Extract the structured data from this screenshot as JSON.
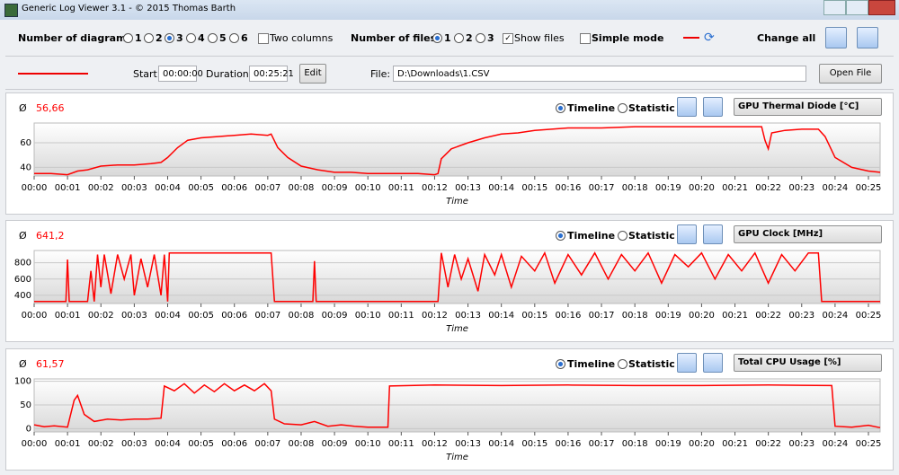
{
  "window_title": "Generic Log Viewer 3.1 - © 2015 Thomas Barth",
  "toolbar": {
    "diagrams_label": "Number of diagrams",
    "diagram_options": [
      "1",
      "2",
      "3",
      "4",
      "5",
      "6"
    ],
    "diagrams_selected": 3,
    "two_columns": "Two columns",
    "files_label": "Number of files",
    "file_options": [
      "1",
      "2",
      "3"
    ],
    "files_selected": 1,
    "show_files": "Show files",
    "simple_mode": "Simple mode",
    "change_all": "Change all"
  },
  "file_row": {
    "start_label": "Start:",
    "start": "00:00:00",
    "duration_label": "Duration:",
    "duration": "00:25:21",
    "edit": "Edit",
    "file_label": "File:",
    "file": "D:\\Downloads\\1.CSV",
    "open": "Open File"
  },
  "charts": [
    {
      "type": "line",
      "avg_symbol": "Ø",
      "average": "56,66",
      "timeline": "Timeline",
      "statistic": "Statistic",
      "sensor": "GPU Thermal Diode [°C]",
      "x_label": "Time",
      "color": "#ff0000",
      "x": [
        0,
        0.5,
        1,
        1.3,
        1.6,
        2,
        2.5,
        3,
        3.5,
        3.8,
        4,
        4.3,
        4.6,
        5,
        5.5,
        6,
        6.5,
        7,
        7.1,
        7.3,
        7.6,
        8,
        8.5,
        9,
        9.5,
        10,
        10.5,
        11,
        11.5,
        12,
        12.1,
        12.2,
        12.5,
        13,
        13.5,
        14,
        14.5,
        15,
        15.5,
        16,
        17,
        18,
        19,
        20,
        21,
        21.8,
        21.9,
        22,
        22.1,
        22.5,
        23,
        23.5,
        23.7,
        24,
        24.5,
        25,
        25.35
      ],
      "values": [
        35,
        35,
        34,
        37,
        38,
        41,
        42,
        42,
        43,
        44,
        48,
        56,
        62,
        64,
        65,
        66,
        67,
        66,
        67,
        56,
        48,
        41,
        38,
        36,
        36,
        35,
        35,
        35,
        35,
        34,
        35,
        47,
        55,
        60,
        64,
        67,
        68,
        70,
        71,
        72,
        72,
        73,
        73,
        73,
        73,
        73,
        62,
        55,
        68,
        70,
        71,
        71,
        65,
        48,
        40,
        37,
        36
      ],
      "xlim": [
        0,
        25.35
      ],
      "ylim": [
        33,
        76
      ],
      "yticks": [
        40,
        60
      ],
      "xticks": [
        {
          "value": 0,
          "label": "00:00"
        },
        {
          "value": 1,
          "label": "00:01"
        },
        {
          "value": 2,
          "label": "00:02"
        },
        {
          "value": 3,
          "label": "00:03"
        },
        {
          "value": 4,
          "label": "00:04"
        },
        {
          "value": 5,
          "label": "00:05"
        },
        {
          "value": 6,
          "label": "00:06"
        },
        {
          "value": 7,
          "label": "00:07"
        },
        {
          "value": 8,
          "label": "00:08"
        },
        {
          "value": 9,
          "label": "00:09"
        },
        {
          "value": 10,
          "label": "00:10"
        },
        {
          "value": 11,
          "label": "00:11"
        },
        {
          "value": 12,
          "label": "00:12"
        },
        {
          "value": 13,
          "label": "00:13"
        },
        {
          "value": 14,
          "label": "00:14"
        },
        {
          "value": 15,
          "label": "00:15"
        },
        {
          "value": 16,
          "label": "00:16"
        },
        {
          "value": 17,
          "label": "00:17"
        },
        {
          "value": 18,
          "label": "00:18"
        },
        {
          "value": 19,
          "label": "00:19"
        },
        {
          "value": 20,
          "label": "00:20"
        },
        {
          "value": 21,
          "label": "00:21"
        },
        {
          "value": 22,
          "label": "00:22"
        },
        {
          "value": 23,
          "label": "00:23"
        },
        {
          "value": 24,
          "label": "00:24"
        },
        {
          "value": 25,
          "label": "00:25"
        }
      ]
    },
    {
      "type": "line",
      "avg_symbol": "Ø",
      "average": "641,2",
      "timeline": "Timeline",
      "statistic": "Statistic",
      "sensor": "GPU Clock [MHz]",
      "x_label": "Time",
      "color": "#ff0000",
      "x": [
        0,
        0.95,
        1,
        1.05,
        1.6,
        1.7,
        1.8,
        1.9,
        2,
        2.1,
        2.3,
        2.5,
        2.7,
        2.9,
        3,
        3.2,
        3.4,
        3.6,
        3.8,
        3.9,
        4,
        4.05,
        7.1,
        7.2,
        8.35,
        8.4,
        8.45,
        12.1,
        12.2,
        12.4,
        12.6,
        12.8,
        13,
        13.3,
        13.5,
        13.8,
        14,
        14.3,
        14.6,
        15,
        15.3,
        15.6,
        16,
        16.4,
        16.8,
        17.2,
        17.6,
        18,
        18.4,
        18.8,
        19.2,
        19.6,
        20,
        20.4,
        20.8,
        21.2,
        21.6,
        22,
        22.4,
        22.8,
        23.2,
        23.5,
        23.6,
        25.35
      ],
      "values": [
        324,
        324,
        840,
        324,
        324,
        700,
        324,
        900,
        500,
        900,
        420,
        900,
        600,
        900,
        400,
        850,
        500,
        900,
        400,
        900,
        324,
        920,
        920,
        324,
        324,
        820,
        324,
        324,
        920,
        500,
        900,
        600,
        850,
        450,
        900,
        650,
        900,
        500,
        880,
        700,
        920,
        550,
        900,
        650,
        920,
        600,
        900,
        700,
        920,
        550,
        900,
        750,
        920,
        600,
        900,
        700,
        920,
        550,
        900,
        700,
        920,
        920,
        324,
        324
      ],
      "xlim": [
        0,
        25.35
      ],
      "ylim": [
        300,
        950
      ],
      "yticks": [
        400,
        600,
        800
      ],
      "xticks": [
        {
          "value": 0,
          "label": "00:00"
        },
        {
          "value": 1,
          "label": "00:01"
        },
        {
          "value": 2,
          "label": "00:02"
        },
        {
          "value": 3,
          "label": "00:03"
        },
        {
          "value": 4,
          "label": "00:04"
        },
        {
          "value": 5,
          "label": "00:05"
        },
        {
          "value": 6,
          "label": "00:06"
        },
        {
          "value": 7,
          "label": "00:07"
        },
        {
          "value": 8,
          "label": "00:08"
        },
        {
          "value": 9,
          "label": "00:09"
        },
        {
          "value": 10,
          "label": "00:10"
        },
        {
          "value": 11,
          "label": "00:11"
        },
        {
          "value": 12,
          "label": "00:12"
        },
        {
          "value": 13,
          "label": "00:13"
        },
        {
          "value": 14,
          "label": "00:14"
        },
        {
          "value": 15,
          "label": "00:15"
        },
        {
          "value": 16,
          "label": "00:16"
        },
        {
          "value": 17,
          "label": "00:17"
        },
        {
          "value": 18,
          "label": "00:18"
        },
        {
          "value": 19,
          "label": "00:19"
        },
        {
          "value": 20,
          "label": "00:20"
        },
        {
          "value": 21,
          "label": "00:21"
        },
        {
          "value": 22,
          "label": "00:22"
        },
        {
          "value": 23,
          "label": "00:23"
        },
        {
          "value": 24,
          "label": "00:24"
        },
        {
          "value": 25,
          "label": "00:25"
        }
      ]
    },
    {
      "type": "line",
      "avg_symbol": "Ø",
      "average": "61,57",
      "timeline": "Timeline",
      "statistic": "Statistic",
      "sensor": "Total CPU Usage [%]",
      "x_label": "Time",
      "color": "#ff0000",
      "x": [
        0,
        0.3,
        0.6,
        1,
        1.2,
        1.3,
        1.5,
        1.8,
        2.2,
        2.6,
        3,
        3.4,
        3.8,
        3.9,
        4.2,
        4.5,
        4.8,
        5.1,
        5.4,
        5.7,
        6,
        6.3,
        6.6,
        6.9,
        7.1,
        7.2,
        7.5,
        8,
        8.4,
        8.8,
        9.2,
        9.6,
        10,
        10.6,
        10.65,
        12,
        14,
        16,
        18,
        20,
        22,
        23.9,
        24,
        24.5,
        25,
        25.35
      ],
      "values": [
        8,
        4,
        6,
        3,
        60,
        70,
        30,
        15,
        20,
        18,
        20,
        20,
        22,
        90,
        80,
        95,
        75,
        92,
        78,
        95,
        80,
        92,
        80,
        95,
        80,
        20,
        10,
        8,
        15,
        5,
        8,
        5,
        3,
        3,
        90,
        92,
        91,
        92,
        91,
        91,
        92,
        91,
        5,
        3,
        7,
        2
      ],
      "xlim": [
        0,
        25.35
      ],
      "ylim": [
        -7,
        105
      ],
      "yticks": [
        0,
        50,
        100
      ],
      "xticks": [
        {
          "value": 0,
          "label": "00:00"
        },
        {
          "value": 1,
          "label": "00:01"
        },
        {
          "value": 2,
          "label": "00:02"
        },
        {
          "value": 3,
          "label": "00:03"
        },
        {
          "value": 4,
          "label": "00:04"
        },
        {
          "value": 5,
          "label": "00:05"
        },
        {
          "value": 6,
          "label": "00:06"
        },
        {
          "value": 7,
          "label": "00:07"
        },
        {
          "value": 8,
          "label": "00:08"
        },
        {
          "value": 9,
          "label": "00:09"
        },
        {
          "value": 10,
          "label": "00:10"
        },
        {
          "value": 11,
          "label": "00:11"
        },
        {
          "value": 12,
          "label": "00:12"
        },
        {
          "value": 13,
          "label": "00:13"
        },
        {
          "value": 14,
          "label": "00:14"
        },
        {
          "value": 15,
          "label": "00:15"
        },
        {
          "value": 16,
          "label": "00:16"
        },
        {
          "value": 17,
          "label": "00:17"
        },
        {
          "value": 18,
          "label": "00:18"
        },
        {
          "value": 19,
          "label": "00:19"
        },
        {
          "value": 20,
          "label": "00:20"
        },
        {
          "value": 21,
          "label": "00:21"
        },
        {
          "value": 22,
          "label": "00:22"
        },
        {
          "value": 23,
          "label": "00:23"
        },
        {
          "value": 24,
          "label": "00:24"
        },
        {
          "value": 25,
          "label": "00:25"
        }
      ]
    }
  ]
}
